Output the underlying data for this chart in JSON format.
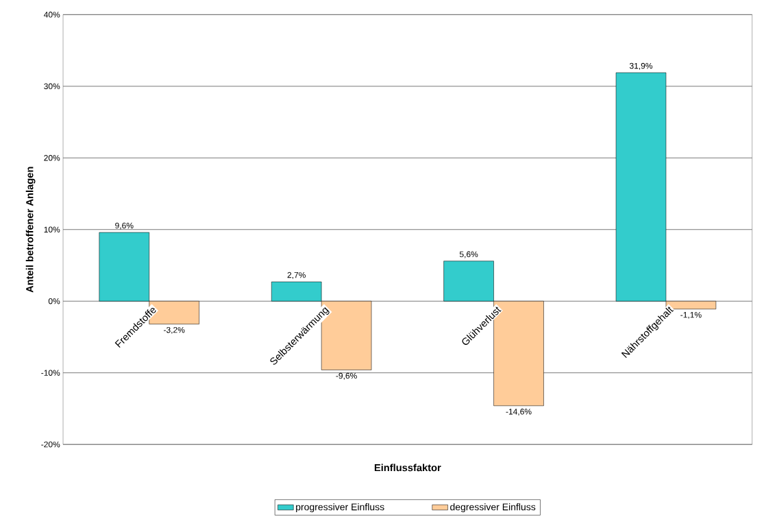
{
  "chart_data": {
    "type": "bar",
    "xlabel": "Einflussfaktor",
    "ylabel": "Anteil betroffener Anlagen",
    "categories": [
      "Fremdstoffe",
      "Selbsterwärmung",
      "Glühverlust",
      "Nährstoffgehalt"
    ],
    "series": [
      {
        "name": "progressiver Einfluss",
        "color": "#33cccc",
        "values": [
          9.6,
          2.7,
          5.6,
          31.9
        ],
        "value_labels": [
          "9,6%",
          "2,7%",
          "5,6%",
          "31,9%"
        ]
      },
      {
        "name": "degressiver Einfluss",
        "color": "#ffcc99",
        "values": [
          -3.2,
          -9.6,
          -14.6,
          -1.1
        ],
        "value_labels": [
          "-3,2%",
          "-9,6%",
          "-14,6%",
          "-1,1%"
        ]
      }
    ],
    "ylim": [
      -20,
      40
    ],
    "yticks": [
      {
        "value": -20,
        "label": "-20%"
      },
      {
        "value": -10,
        "label": "-10%"
      },
      {
        "value": 0,
        "label": "0%"
      },
      {
        "value": 10,
        "label": "10%"
      },
      {
        "value": 20,
        "label": "20%"
      },
      {
        "value": 30,
        "label": "30%"
      },
      {
        "value": 40,
        "label": "40%"
      }
    ],
    "grid": "y",
    "legend": "bottom"
  }
}
